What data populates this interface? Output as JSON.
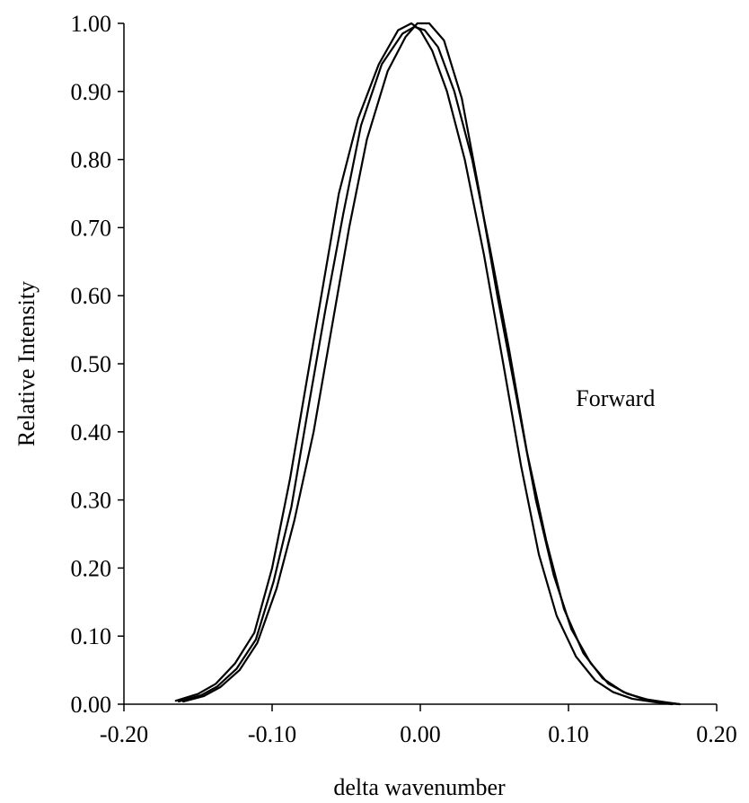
{
  "chart_data": {
    "type": "line",
    "title": "",
    "xlabel": "delta wavenumber",
    "ylabel": "Relative Intensity",
    "xlim": [
      -0.2,
      0.2
    ],
    "ylim": [
      0,
      1
    ],
    "grid": false,
    "legend": "none",
    "xticks": [
      "-0.20",
      "-0.10",
      "0.00",
      "0.10",
      "0.20"
    ],
    "xtick_values": [
      -0.2,
      -0.1,
      0.0,
      0.1,
      0.2
    ],
    "yticks": [
      "0.00",
      "0.10",
      "0.20",
      "0.30",
      "0.40",
      "0.50",
      "0.60",
      "0.70",
      "0.80",
      "0.90",
      "1.00"
    ],
    "ytick_values": [
      0,
      0.1,
      0.2,
      0.3,
      0.4,
      0.5,
      0.6,
      0.7,
      0.8,
      0.9,
      1.0
    ],
    "annotations": [
      {
        "text": "Forward",
        "x": 0.105,
        "y": 0.45
      }
    ],
    "line_color": "#000000",
    "series": [
      {
        "x": [
          -0.165,
          -0.15,
          -0.138,
          -0.125,
          -0.112,
          -0.1,
          -0.088,
          -0.077,
          -0.066,
          -0.055,
          -0.042,
          -0.028,
          -0.015,
          -0.006,
          0.0,
          0.008,
          0.018,
          0.03,
          0.043,
          0.056,
          0.068,
          0.08,
          0.092,
          0.105,
          0.118,
          0.13,
          0.143,
          0.158,
          0.17
        ],
        "y": [
          0.005,
          0.015,
          0.03,
          0.06,
          0.105,
          0.2,
          0.33,
          0.47,
          0.61,
          0.75,
          0.86,
          0.94,
          0.99,
          1.0,
          0.99,
          0.96,
          0.9,
          0.8,
          0.66,
          0.5,
          0.35,
          0.22,
          0.13,
          0.07,
          0.035,
          0.018,
          0.008,
          0.003,
          0.0
        ]
      },
      {
        "x": [
          -0.163,
          -0.148,
          -0.137,
          -0.124,
          -0.111,
          -0.099,
          -0.087,
          -0.076,
          -0.064,
          -0.052,
          -0.04,
          -0.026,
          -0.012,
          -0.004,
          0.003,
          0.012,
          0.023,
          0.035,
          0.047,
          0.06,
          0.072,
          0.085,
          0.097,
          0.11,
          0.123,
          0.137,
          0.15,
          0.163,
          0.175
        ],
        "y": [
          0.004,
          0.013,
          0.026,
          0.052,
          0.095,
          0.18,
          0.29,
          0.43,
          0.58,
          0.72,
          0.85,
          0.94,
          0.985,
          0.995,
          0.99,
          0.965,
          0.9,
          0.8,
          0.67,
          0.52,
          0.37,
          0.24,
          0.14,
          0.075,
          0.038,
          0.018,
          0.008,
          0.003,
          0.0
        ]
      },
      {
        "x": [
          -0.16,
          -0.146,
          -0.135,
          -0.122,
          -0.11,
          -0.097,
          -0.085,
          -0.072,
          -0.06,
          -0.048,
          -0.036,
          -0.022,
          -0.01,
          -0.002,
          0.006,
          0.016,
          0.028,
          0.04,
          0.052,
          0.065,
          0.078,
          0.09,
          0.102,
          0.115,
          0.127,
          0.14,
          0.153,
          0.165,
          0.175
        ],
        "y": [
          0.004,
          0.012,
          0.025,
          0.05,
          0.09,
          0.17,
          0.27,
          0.4,
          0.55,
          0.7,
          0.83,
          0.93,
          0.98,
          1.0,
          1.0,
          0.975,
          0.89,
          0.75,
          0.6,
          0.45,
          0.3,
          0.19,
          0.11,
          0.06,
          0.03,
          0.015,
          0.007,
          0.003,
          0.0
        ]
      }
    ]
  }
}
